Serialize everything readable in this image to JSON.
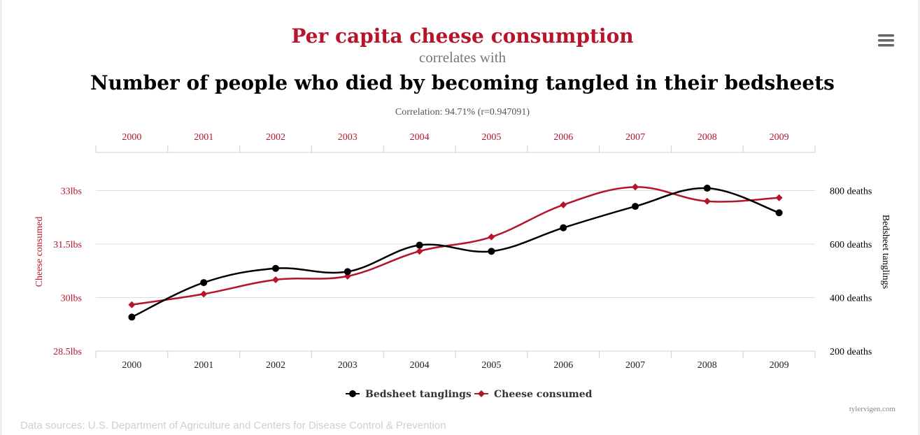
{
  "titles": {
    "primary": "Per capita cheese consumption",
    "connector": "correlates with",
    "secondary": "Number of people who died by becoming tangled in their bedsheets",
    "correlation": "Correlation: 94.71% (r=0.947091)"
  },
  "menu": {
    "icon": "hamburger-menu-icon"
  },
  "chart_data": {
    "type": "line",
    "x": [
      2000,
      2001,
      2002,
      2003,
      2004,
      2005,
      2006,
      2007,
      2008,
      2009
    ],
    "x_tick_labels": [
      "2000",
      "2001",
      "2002",
      "2003",
      "2004",
      "2005",
      "2006",
      "2007",
      "2008",
      "2009"
    ],
    "left_axis": {
      "label": "Cheese consumed",
      "range": [
        28.5,
        34.5
      ],
      "ticks": [
        28.5,
        30,
        31.5,
        33
      ],
      "tick_labels": [
        "28.5lbs",
        "30lbs",
        "31.5lbs",
        "33lbs"
      ]
    },
    "right_axis": {
      "label": "Bedsheet tanglings",
      "range": [
        200,
        1000
      ],
      "ticks": [
        200,
        400,
        600,
        800
      ],
      "tick_labels": [
        "200 deaths",
        "400 deaths",
        "600 deaths",
        "800 deaths"
      ]
    },
    "series": [
      {
        "name": "Bedsheet tanglings",
        "axis": "right",
        "color": "#000000",
        "marker": "circle",
        "values": [
          327,
          456,
          509,
          497,
          596,
          573,
          661,
          741,
          809,
          717
        ]
      },
      {
        "name": "Cheese consumed",
        "axis": "left",
        "color": "#b5142b",
        "marker": "diamond",
        "values": [
          29.8,
          30.1,
          30.5,
          30.6,
          31.3,
          31.7,
          32.6,
          33.1,
          32.7,
          32.8
        ]
      }
    ],
    "grid": true,
    "legend_position": "bottom-center"
  },
  "footer": {
    "credit": "tylervigen.com",
    "sources": "Data sources: U.S. Department of Agriculture and Centers for Disease Control & Prevention"
  }
}
